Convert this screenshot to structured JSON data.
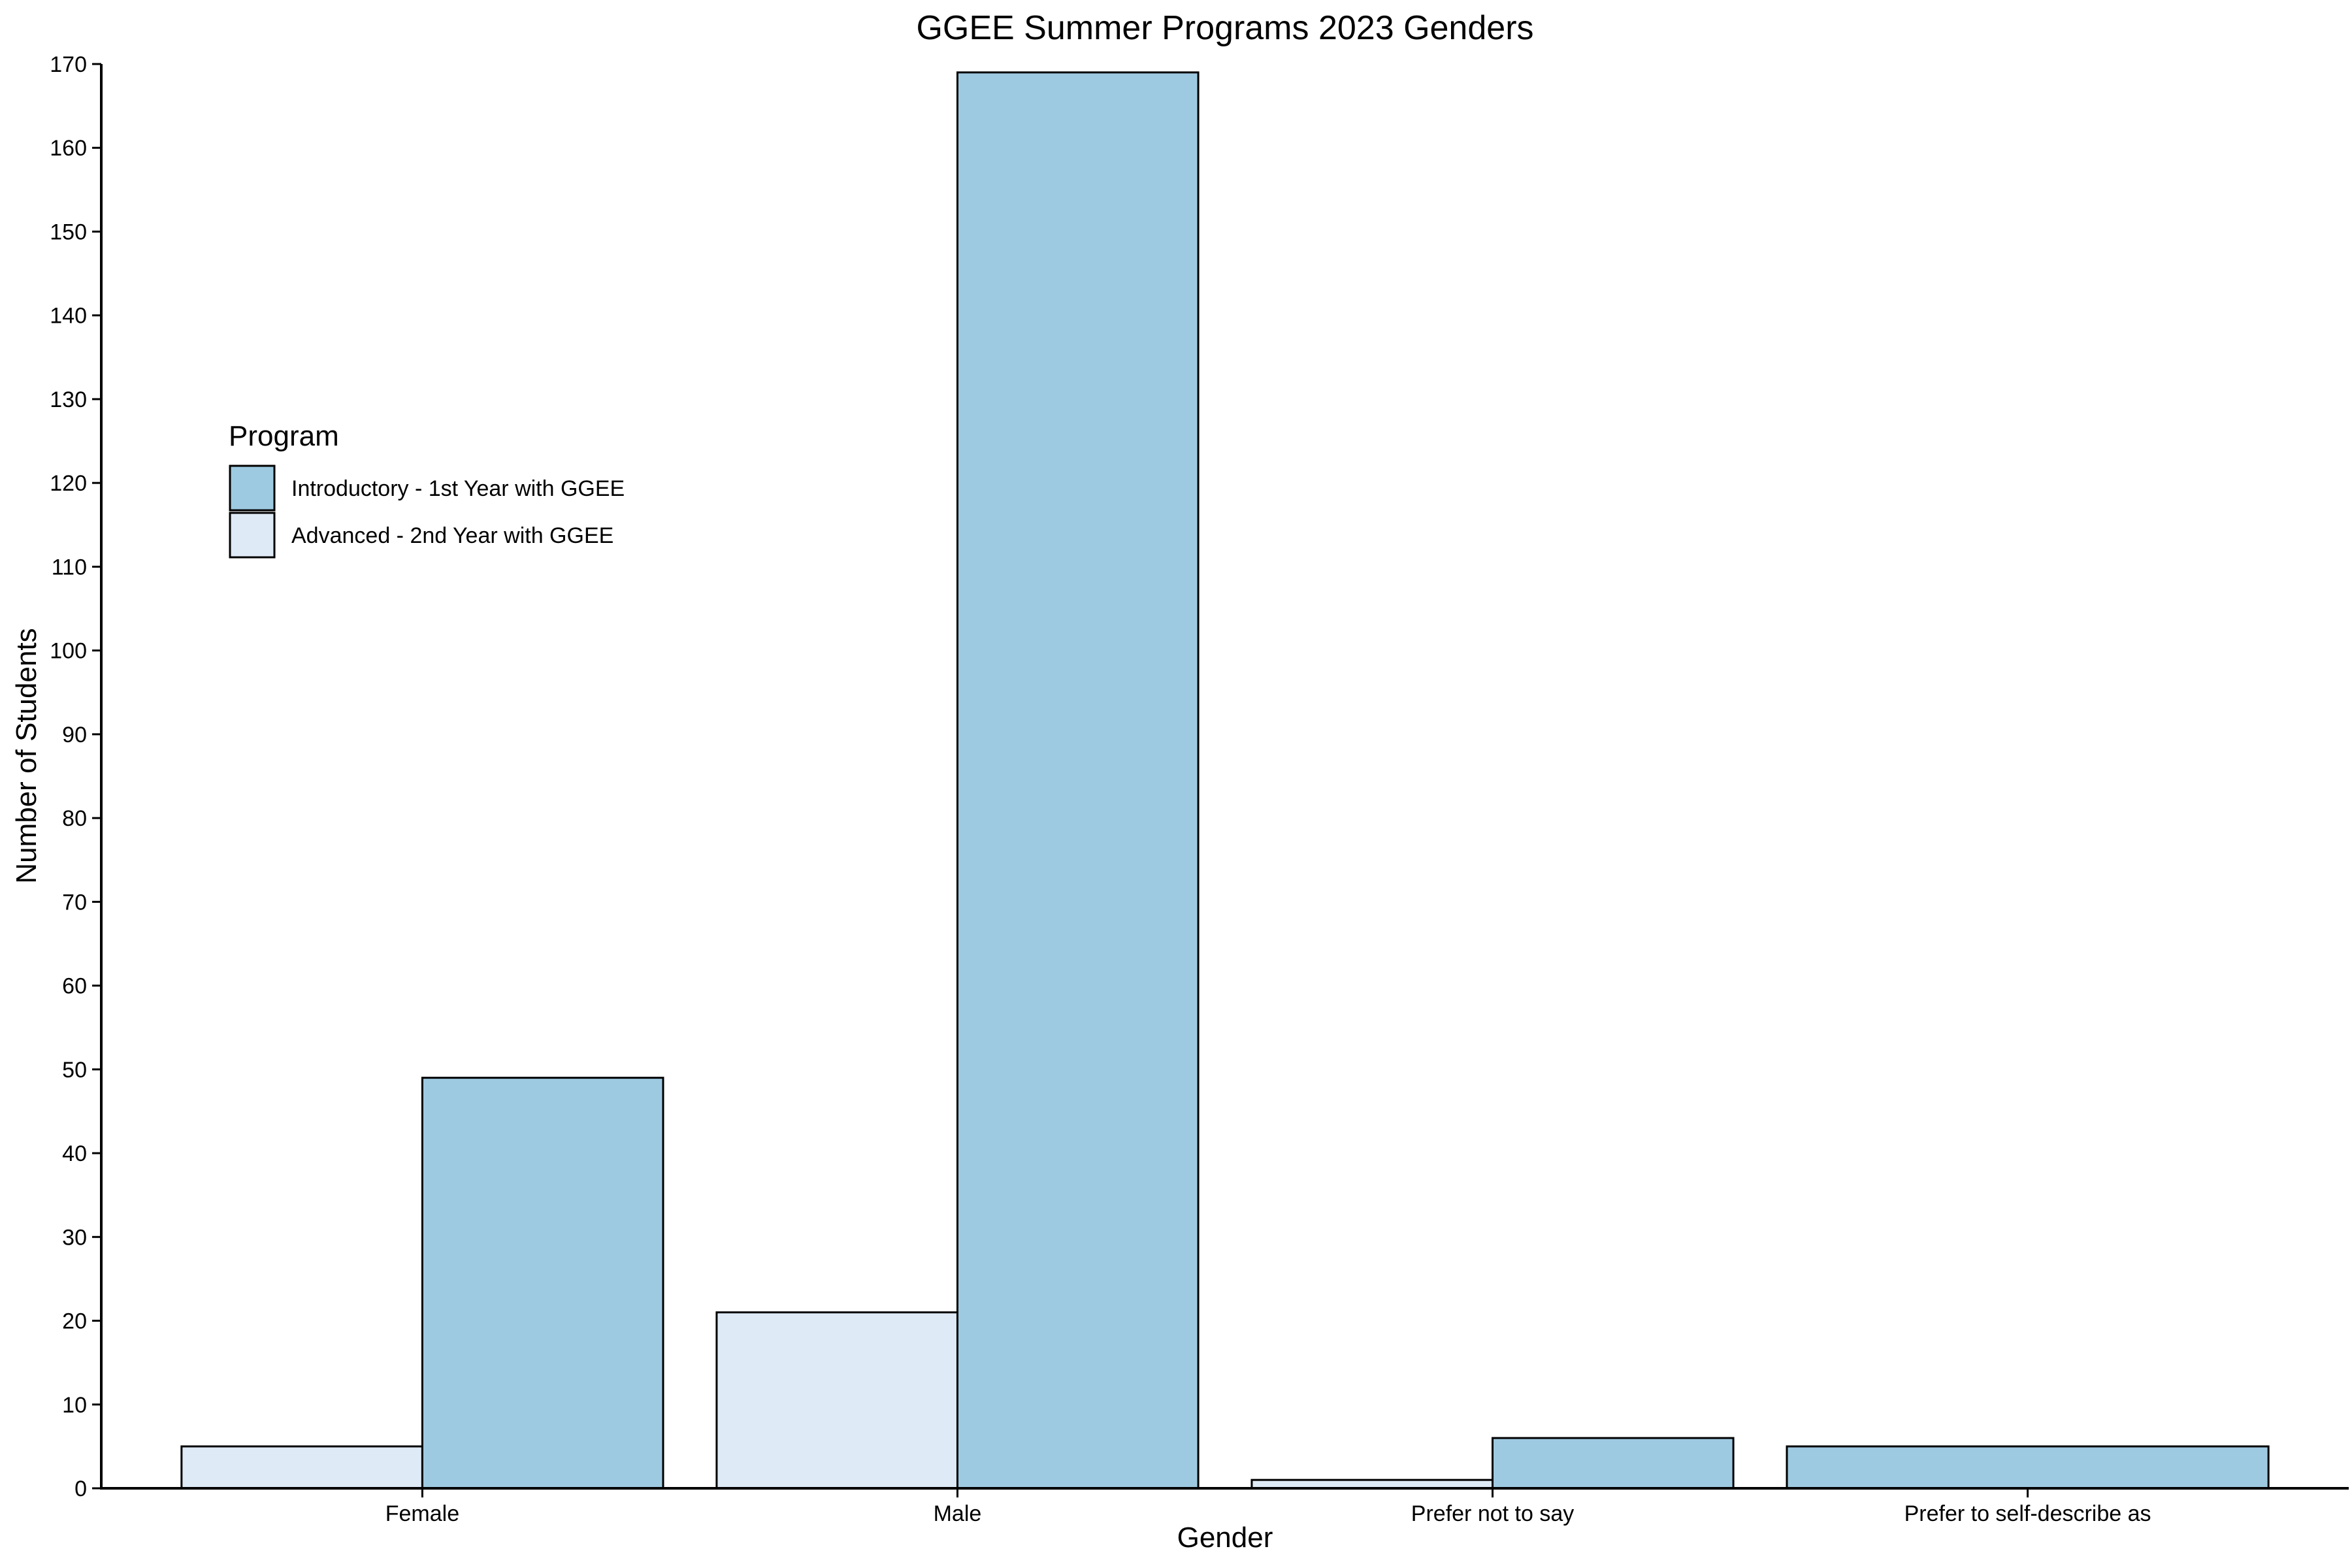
{
  "chart_data": {
    "type": "bar",
    "title": "GGEE Summer Programs 2023 Genders",
    "xlabel": "Gender",
    "ylabel": "Number of Students",
    "categories": [
      "Female",
      "Male",
      "Prefer not to say",
      "Prefer to self-describe as"
    ],
    "series": [
      {
        "name": "Advanced - 2nd Year with GGEE",
        "color": "#deeaf6",
        "values": [
          5,
          21,
          1,
          null
        ]
      },
      {
        "name": "Introductory - 1st Year with GGEE",
        "color": "#9ecae1",
        "values": [
          49,
          169,
          6,
          5
        ]
      }
    ],
    "ylim": [
      0,
      170
    ],
    "yticks": [
      0,
      10,
      20,
      30,
      40,
      50,
      60,
      70,
      80,
      90,
      100,
      110,
      120,
      130,
      140,
      150,
      160,
      170
    ],
    "grid": false,
    "legend": {
      "title": "Program",
      "placement": "top-left",
      "entries": [
        "Introductory - 1st Year with GGEE",
        "Advanced - 2nd Year with GGEE"
      ]
    },
    "bar_outline_color": "#000000"
  }
}
